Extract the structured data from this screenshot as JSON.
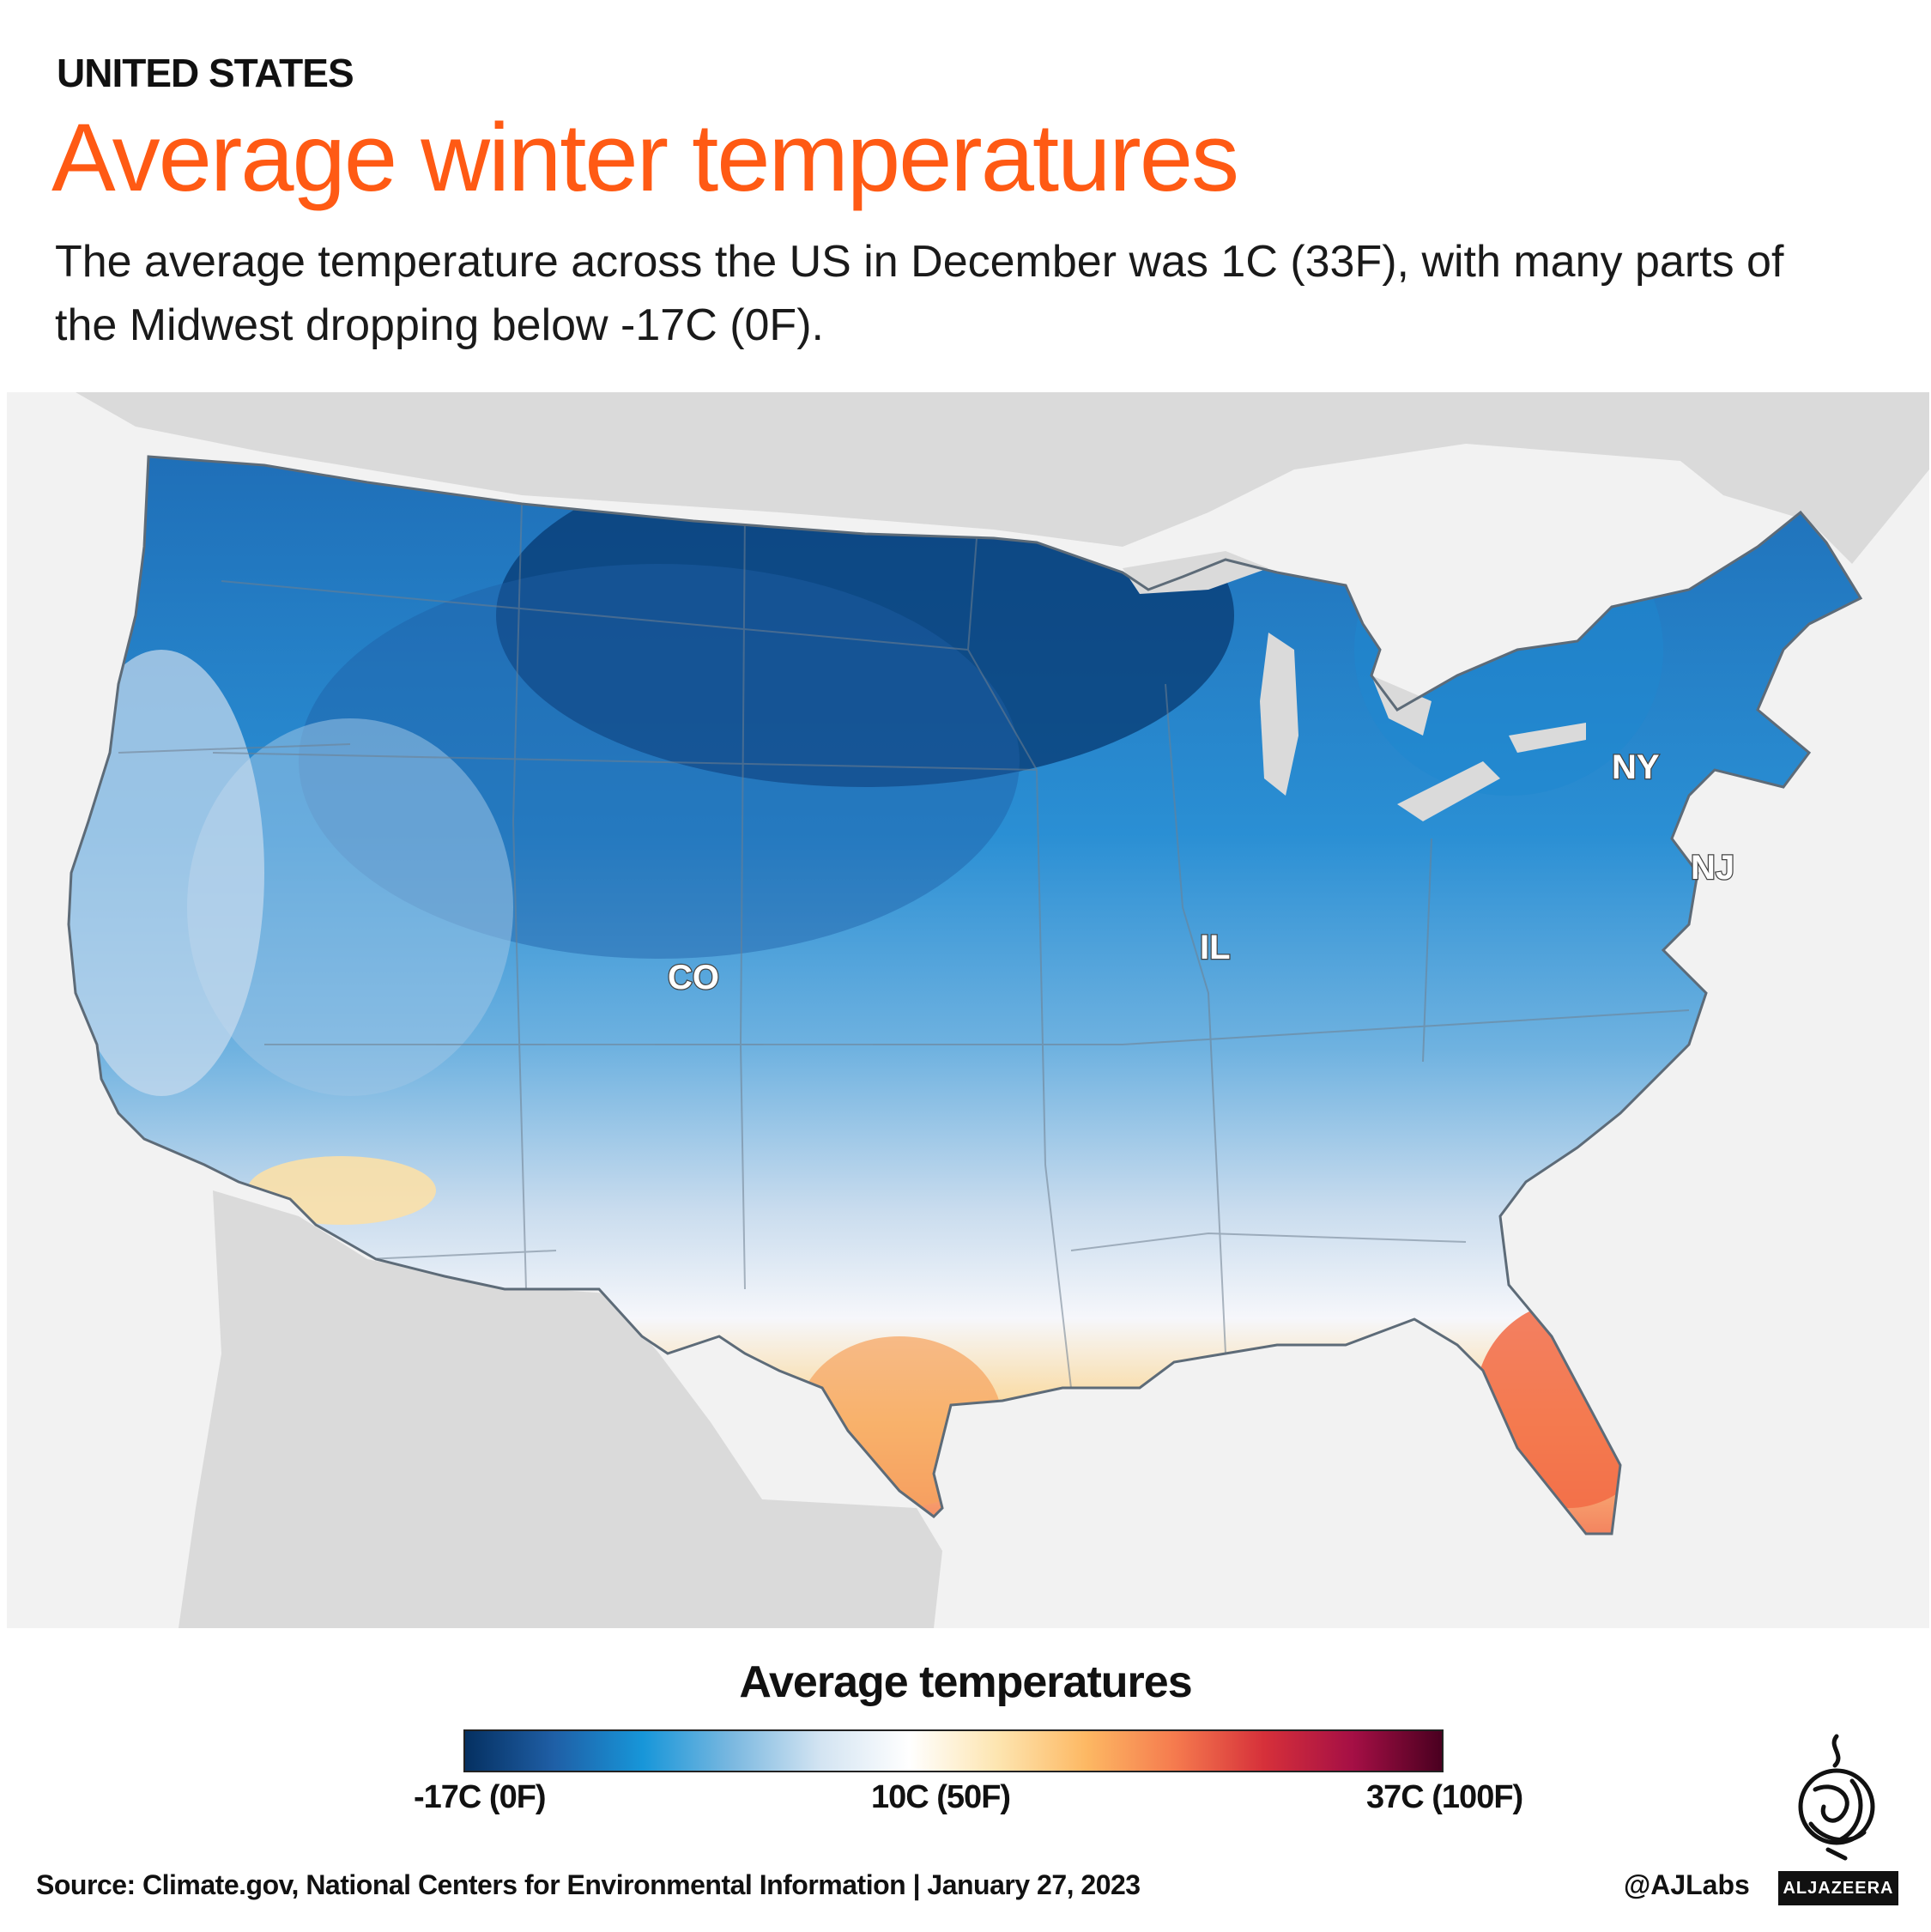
{
  "header": {
    "kicker": "UNITED STATES",
    "title": "Average winter temperatures",
    "subtitle": "The average temperature across the US in December was 1C (33F), with many parts of the Midwest dropping below -17C (0F)."
  },
  "map": {
    "state_labels": [
      "CO",
      "IL",
      "NY",
      "NJ"
    ],
    "colors": {
      "background": "#f2f2f2",
      "land_outside": "#dadada",
      "coldest": "#053061",
      "cold": "#1f77c0",
      "cool": "#4aa3dd",
      "mild": "#b7d4ea",
      "neutral": "#f6f7fb",
      "warm": "#fbd38a",
      "hot": "#f4845f"
    }
  },
  "legend": {
    "title": "Average temperatures",
    "min_label": "-17C (0F)",
    "mid_label": "10C (50F)",
    "max_label": "37C (100F)",
    "gradient": [
      "#053061",
      "#1f5fa6",
      "#1796d9",
      "#7ab8e0",
      "#d3e4f2",
      "#ffffff",
      "#fde5b0",
      "#fdb863",
      "#f57a4e",
      "#d6303a",
      "#a50f45",
      "#4a0020"
    ]
  },
  "footer": {
    "source": "Source: Climate.gov, National Centers for Environmental Information   |   January 27, 2023",
    "handle": "@AJLabs",
    "brand": "ALJAZEERA"
  }
}
